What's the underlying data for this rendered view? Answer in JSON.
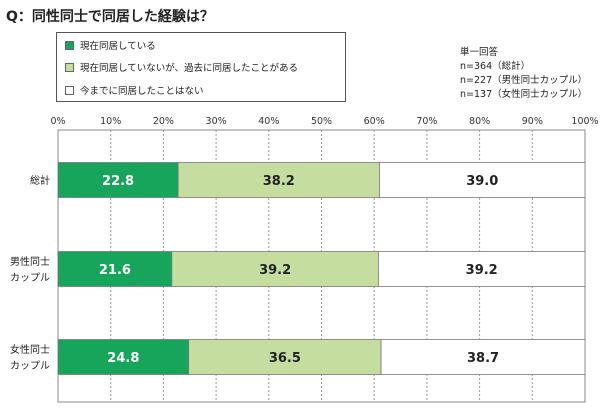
{
  "title": "Q：同性同士で同居した経験は？",
  "legend": [
    {
      "label": "現在同居している",
      "color": "#16a55a"
    },
    {
      "label": "現在同居していないが、過去に同居したことがある",
      "color": "#c5dea0"
    },
    {
      "label": "今までに同居したことはない",
      "color": "#ffffff"
    }
  ],
  "note": [
    "単一回答",
    "n=364（総計）",
    "n=227（男性同士カップル）",
    "n=137（女性同士カップル）"
  ],
  "chart_data": {
    "type": "bar",
    "orientation": "horizontal",
    "stacked": "100%",
    "xlim": [
      0,
      100
    ],
    "ticks": [
      "0%",
      "10%",
      "20%",
      "30%",
      "40%",
      "50%",
      "60%",
      "70%",
      "80%",
      "90%",
      "100%"
    ],
    "grid": true,
    "categories": [
      [
        "総計"
      ],
      [
        "男性同士",
        "カップル"
      ],
      [
        "女性同士",
        "カップル"
      ]
    ],
    "series": [
      {
        "name": "現在同居している",
        "values": [
          22.8,
          21.6,
          24.8
        ],
        "color": "#16a55a",
        "labelColor": "#ffffff"
      },
      {
        "name": "現在同居していないが、過去に同居したことがある",
        "values": [
          38.2,
          39.2,
          36.5
        ],
        "color": "#c5dea0",
        "labelColor": "#222222"
      },
      {
        "name": "今までに同居したことはない",
        "values": [
          39.0,
          39.2,
          38.7
        ],
        "color": "#ffffff",
        "labelColor": "#222222"
      }
    ]
  }
}
